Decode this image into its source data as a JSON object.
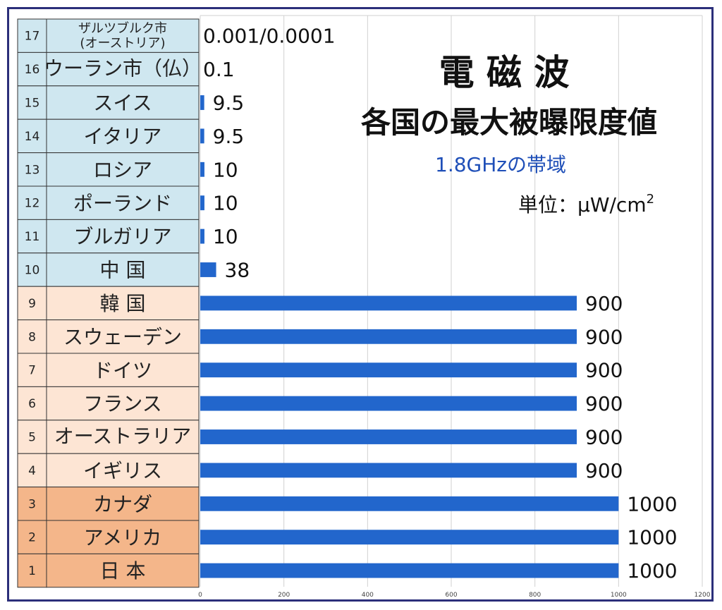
{
  "colors": {
    "bar": "#2266cc",
    "group_low": "#cfe7f0",
    "group_mid": "#fde5d4",
    "group_high": "#f4b68a",
    "grid": "#d0d0d0",
    "border": "#2b2f7a"
  },
  "header": {
    "title": "電 磁 波",
    "subtitle": "各国の最大被曝限度値",
    "band": "1.8GHzの帯域",
    "unit_label": "単位：μW/cm",
    "unit_superscript": "2"
  },
  "chart_data": {
    "type": "bar",
    "orientation": "horizontal",
    "xlim": [
      0,
      1200
    ],
    "xticks": [
      "0",
      "200",
      "400",
      "600",
      "800",
      "1000",
      "1200"
    ],
    "grid": true,
    "rows": [
      {
        "rank": "17",
        "name": "ザルツブルク市",
        "name2": "(オーストリア)",
        "value": 0.001,
        "label": "0.001/0.0001",
        "group": "low"
      },
      {
        "rank": "16",
        "name": "ウーラン市（仏）",
        "value": 0.1,
        "label": "0.1",
        "group": "low"
      },
      {
        "rank": "15",
        "name": "スイス",
        "value": 9.5,
        "label": "9.5",
        "group": "low"
      },
      {
        "rank": "14",
        "name": "イタリア",
        "value": 9.5,
        "label": "9.5",
        "group": "low"
      },
      {
        "rank": "13",
        "name": "ロシア",
        "value": 10,
        "label": "10",
        "group": "low"
      },
      {
        "rank": "12",
        "name": "ポーランド",
        "value": 10,
        "label": "10",
        "group": "low"
      },
      {
        "rank": "11",
        "name": "ブルガリア",
        "value": 10,
        "label": "10",
        "group": "low"
      },
      {
        "rank": "10",
        "name": "中 国",
        "value": 38,
        "label": "38",
        "group": "low"
      },
      {
        "rank": "9",
        "name": "韓 国",
        "value": 900,
        "label": "900",
        "group": "mid"
      },
      {
        "rank": "8",
        "name": "スウェーデン",
        "value": 900,
        "label": "900",
        "group": "mid"
      },
      {
        "rank": "7",
        "name": "ドイツ",
        "value": 900,
        "label": "900",
        "group": "mid"
      },
      {
        "rank": "6",
        "name": "フランス",
        "value": 900,
        "label": "900",
        "group": "mid"
      },
      {
        "rank": "5",
        "name": "オーストラリア",
        "value": 900,
        "label": "900",
        "group": "mid"
      },
      {
        "rank": "4",
        "name": "イギリス",
        "value": 900,
        "label": "900",
        "group": "mid"
      },
      {
        "rank": "3",
        "name": "カナダ",
        "value": 1000,
        "label": "1000",
        "group": "high"
      },
      {
        "rank": "2",
        "name": "アメリカ",
        "value": 1000,
        "label": "1000",
        "group": "high"
      },
      {
        "rank": "1",
        "name": "日 本",
        "value": 1000,
        "label": "1000",
        "group": "high"
      }
    ]
  }
}
